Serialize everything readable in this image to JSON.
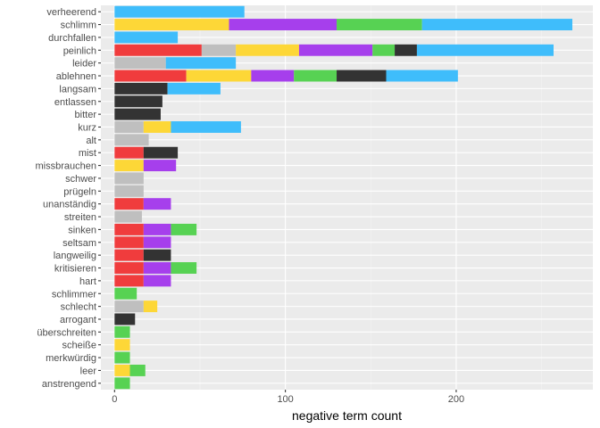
{
  "chart_data": {
    "type": "bar",
    "orientation": "horizontal",
    "stacked": true,
    "xlabel": "negative term count",
    "ylabel": "",
    "xlim": [
      -8,
      280
    ],
    "xticks": [
      0,
      100,
      200
    ],
    "grid": true,
    "legend": "none",
    "categories": [
      "verheerend",
      "schlimm",
      "durchfallen",
      "peinlich",
      "leider",
      "ablehnen",
      "langsam",
      "entlassen",
      "bitter",
      "kurz",
      "alt",
      "mist",
      "missbrauchen",
      "schwer",
      "prügeln",
      "unanständig",
      "streiten",
      "sinken",
      "seltsam",
      "langweilig",
      "kritisieren",
      "hart",
      "schlimmer",
      "schlecht",
      "arrogant",
      "überschreiten",
      "scheiße",
      "merkwürdig",
      "leer",
      "anstrengend"
    ],
    "segments": [
      [
        {
          "color": "#3FBDFB",
          "value": 76
        }
      ],
      [
        {
          "color": "#FDD737",
          "value": 67
        },
        {
          "color": "#A63FEC",
          "value": 63
        },
        {
          "color": "#57D253",
          "value": 50
        },
        {
          "color": "#3FBDFB",
          "value": 88
        }
      ],
      [
        {
          "color": "#3FBDFB",
          "value": 37
        }
      ],
      [
        {
          "color": "#F03C3D",
          "value": 51
        },
        {
          "color": "#BFBFBF",
          "value": 20
        },
        {
          "color": "#FDD737",
          "value": 37
        },
        {
          "color": "#A63FEC",
          "value": 43
        },
        {
          "color": "#57D253",
          "value": 13
        },
        {
          "color": "#333333",
          "value": 13
        },
        {
          "color": "#3FBDFB",
          "value": 80
        }
      ],
      [
        {
          "color": "#BFBFBF",
          "value": 30
        },
        {
          "color": "#3FBDFB",
          "value": 41
        }
      ],
      [
        {
          "color": "#F03C3D",
          "value": 42
        },
        {
          "color": "#FDD737",
          "value": 38
        },
        {
          "color": "#A63FEC",
          "value": 25
        },
        {
          "color": "#57D253",
          "value": 25
        },
        {
          "color": "#333333",
          "value": 29
        },
        {
          "color": "#3FBDFB",
          "value": 42
        }
      ],
      [
        {
          "color": "#333333",
          "value": 31
        },
        {
          "color": "#3FBDFB",
          "value": 31
        }
      ],
      [
        {
          "color": "#333333",
          "value": 28
        }
      ],
      [
        {
          "color": "#333333",
          "value": 27
        }
      ],
      [
        {
          "color": "#BFBFBF",
          "value": 17
        },
        {
          "color": "#FDD737",
          "value": 16
        },
        {
          "color": "#3FBDFB",
          "value": 41
        }
      ],
      [
        {
          "color": "#BFBFBF",
          "value": 20
        }
      ],
      [
        {
          "color": "#F03C3D",
          "value": 17
        },
        {
          "color": "#333333",
          "value": 20
        }
      ],
      [
        {
          "color": "#FDD737",
          "value": 17
        },
        {
          "color": "#A63FEC",
          "value": 19
        }
      ],
      [
        {
          "color": "#BFBFBF",
          "value": 17
        }
      ],
      [
        {
          "color": "#BFBFBF",
          "value": 17
        }
      ],
      [
        {
          "color": "#F03C3D",
          "value": 17
        },
        {
          "color": "#A63FEC",
          "value": 16
        }
      ],
      [
        {
          "color": "#BFBFBF",
          "value": 16
        }
      ],
      [
        {
          "color": "#F03C3D",
          "value": 17
        },
        {
          "color": "#A63FEC",
          "value": 16
        },
        {
          "color": "#57D253",
          "value": 15
        }
      ],
      [
        {
          "color": "#F03C3D",
          "value": 17
        },
        {
          "color": "#A63FEC",
          "value": 16
        }
      ],
      [
        {
          "color": "#F03C3D",
          "value": 17
        },
        {
          "color": "#333333",
          "value": 16
        }
      ],
      [
        {
          "color": "#F03C3D",
          "value": 17
        },
        {
          "color": "#A63FEC",
          "value": 16
        },
        {
          "color": "#57D253",
          "value": 15
        }
      ],
      [
        {
          "color": "#F03C3D",
          "value": 17
        },
        {
          "color": "#A63FEC",
          "value": 16
        }
      ],
      [
        {
          "color": "#57D253",
          "value": 13
        }
      ],
      [
        {
          "color": "#BFBFBF",
          "value": 17
        },
        {
          "color": "#FDD737",
          "value": 8
        }
      ],
      [
        {
          "color": "#333333",
          "value": 12
        }
      ],
      [
        {
          "color": "#57D253",
          "value": 9
        }
      ],
      [
        {
          "color": "#FDD737",
          "value": 9
        }
      ],
      [
        {
          "color": "#57D253",
          "value": 9
        }
      ],
      [
        {
          "color": "#FDD737",
          "value": 9
        },
        {
          "color": "#57D253",
          "value": 9
        }
      ],
      [
        {
          "color": "#57D253",
          "value": 9
        }
      ]
    ],
    "colors": {
      "panel_background": "#EBEBEB",
      "grid_major": "#FFFFFF",
      "grid_minor": "#F5F5F5",
      "tick_label": "#4D4D4D"
    }
  }
}
